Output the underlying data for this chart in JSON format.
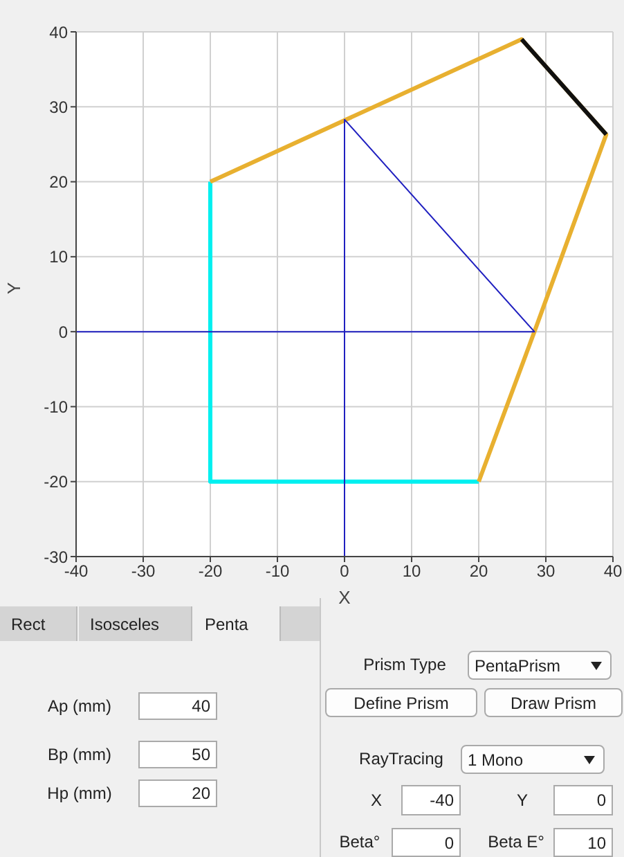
{
  "chart_data": {
    "type": "line",
    "xlabel": "X",
    "ylabel": "Y",
    "xlim": [
      -40,
      40
    ],
    "ylim": [
      -30,
      40
    ],
    "xticks": [
      -40,
      -30,
      -20,
      -10,
      0,
      10,
      20,
      30,
      40
    ],
    "yticks": [
      -30,
      -20,
      -10,
      0,
      10,
      20,
      30,
      40
    ],
    "grid": true,
    "marker": "none",
    "line_style": "solid",
    "series": [
      {
        "color": "#00f0f0",
        "x": [
          20,
          -20,
          -20
        ],
        "values": [
          -20,
          -20,
          20
        ]
      },
      {
        "color": "#e8b030",
        "x": [
          -20,
          26.4,
          39,
          28.3,
          20
        ],
        "values": [
          20,
          39,
          26.3,
          0,
          -20
        ]
      },
      {
        "color": "#101010",
        "x": [
          26.4,
          39
        ],
        "values": [
          39,
          26.3
        ]
      },
      {
        "color": "#2020c0",
        "x": [
          -40,
          28.3,
          0,
          0
        ],
        "values": [
          0,
          0,
          28.3,
          -30
        ]
      }
    ],
    "annotations": [
      "Rect",
      "Isosceles",
      "Penta",
      "Ap (mm)",
      "40",
      "Bp (mm)",
      "50",
      "Hp (mm)",
      "20",
      "Prism Type",
      "PentaPrism",
      "Define Prism",
      "Draw Prism",
      "RayTracing",
      "1 Mono",
      "X",
      "-40",
      "Y",
      "0",
      "Beta°",
      "0",
      "Beta E°",
      "10"
    ]
  }
}
